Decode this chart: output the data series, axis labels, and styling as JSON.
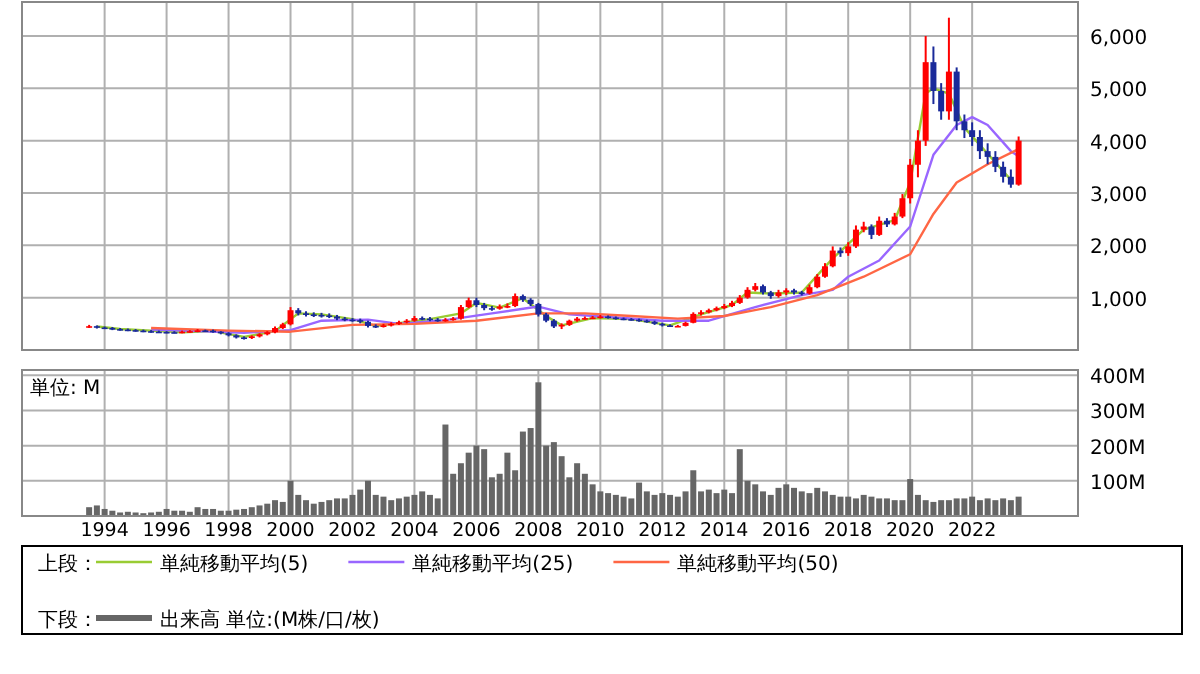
{
  "chart_data": [
    {
      "type": "candlestick",
      "legend_title": "上段：",
      "legend": "bottom",
      "grid": true,
      "tick_labels": "y",
      "xlim": [
        "1991-05",
        "2025-06"
      ],
      "ylim": [
        0,
        6650
      ],
      "xticks": [
        "1994",
        "1996",
        "1998",
        "2000",
        "2002",
        "2004",
        "2006",
        "2008",
        "2010",
        "2012",
        "2014",
        "2016",
        "2018",
        "2020",
        "2022"
      ],
      "yticks": [
        {
          "value": 1000,
          "label": "1,000"
        },
        {
          "value": 2000,
          "label": "2,000"
        },
        {
          "value": 3000,
          "label": "3,000"
        },
        {
          "value": 4000,
          "label": "4,000"
        },
        {
          "value": 5000,
          "label": "5,000"
        },
        {
          "value": 6000,
          "label": "6,000"
        }
      ],
      "x": [
        "1993-07",
        "1993-10",
        "1994-01",
        "1994-04",
        "1994-07",
        "1994-10",
        "1995-01",
        "1995-04",
        "1995-07",
        "1995-10",
        "1996-01",
        "1996-04",
        "1996-07",
        "1996-10",
        "1997-01",
        "1997-04",
        "1997-07",
        "1997-10",
        "1998-01",
        "1998-04",
        "1998-07",
        "1998-10",
        "1999-01",
        "1999-04",
        "1999-07",
        "1999-10",
        "2000-01",
        "2000-04",
        "2000-07",
        "2000-10",
        "2001-01",
        "2001-04",
        "2001-07",
        "2001-10",
        "2002-01",
        "2002-04",
        "2002-07",
        "2002-10",
        "2003-01",
        "2003-04",
        "2003-07",
        "2003-10",
        "2004-01",
        "2004-04",
        "2004-07",
        "2004-10",
        "2005-01",
        "2005-04",
        "2005-07",
        "2005-10",
        "2006-01",
        "2006-04",
        "2006-07",
        "2006-10",
        "2007-01",
        "2007-04",
        "2007-07",
        "2007-10",
        "2008-01",
        "2008-04",
        "2008-07",
        "2008-10",
        "2009-01",
        "2009-04",
        "2009-07",
        "2009-10",
        "2010-01",
        "2010-04",
        "2010-07",
        "2010-10",
        "2011-01",
        "2011-04",
        "2011-07",
        "2011-10",
        "2012-01",
        "2012-04",
        "2012-07",
        "2012-10",
        "2013-01",
        "2013-04",
        "2013-07",
        "2013-10",
        "2014-01",
        "2014-04",
        "2014-07",
        "2014-10",
        "2015-01",
        "2015-04",
        "2015-07",
        "2015-10",
        "2016-01",
        "2016-04",
        "2016-07",
        "2016-10",
        "2017-01",
        "2017-04",
        "2017-07",
        "2017-10",
        "2018-01",
        "2018-04",
        "2018-07",
        "2018-10",
        "2019-01",
        "2019-04",
        "2019-07",
        "2019-10",
        "2020-01",
        "2020-04",
        "2020-07",
        "2020-10",
        "2021-01",
        "2021-04",
        "2021-07",
        "2021-10",
        "2022-01",
        "2022-04",
        "2022-07",
        "2022-10",
        "2023-01",
        "2023-04",
        "2023-07"
      ],
      "ohlc": [
        [
          440,
          480,
          420,
          455
        ],
        [
          455,
          470,
          410,
          430
        ],
        [
          430,
          450,
          400,
          420
        ],
        [
          420,
          440,
          380,
          400
        ],
        [
          400,
          420,
          370,
          390
        ],
        [
          390,
          410,
          360,
          380
        ],
        [
          380,
          400,
          350,
          370
        ],
        [
          370,
          390,
          340,
          360
        ],
        [
          360,
          380,
          330,
          350
        ],
        [
          350,
          370,
          330,
          345
        ],
        [
          345,
          360,
          320,
          340
        ],
        [
          340,
          360,
          320,
          335
        ],
        [
          335,
          370,
          320,
          350
        ],
        [
          350,
          380,
          330,
          360
        ],
        [
          360,
          400,
          340,
          375
        ],
        [
          375,
          390,
          350,
          370
        ],
        [
          370,
          390,
          330,
          350
        ],
        [
          350,
          360,
          300,
          320
        ],
        [
          320,
          340,
          260,
          280
        ],
        [
          280,
          300,
          220,
          240
        ],
        [
          240,
          260,
          200,
          230
        ],
        [
          230,
          280,
          210,
          260
        ],
        [
          260,
          320,
          240,
          300
        ],
        [
          300,
          360,
          280,
          340
        ],
        [
          340,
          450,
          320,
          420
        ],
        [
          420,
          520,
          400,
          490
        ],
        [
          490,
          820,
          470,
          760
        ],
        [
          760,
          800,
          660,
          700
        ],
        [
          700,
          740,
          640,
          680
        ],
        [
          680,
          720,
          630,
          670
        ],
        [
          670,
          710,
          620,
          660
        ],
        [
          660,
          700,
          610,
          640
        ],
        [
          640,
          670,
          570,
          600
        ],
        [
          600,
          630,
          550,
          580
        ],
        [
          580,
          610,
          540,
          570
        ],
        [
          570,
          600,
          510,
          540
        ],
        [
          540,
          560,
          430,
          460
        ],
        [
          460,
          490,
          420,
          450
        ],
        [
          450,
          500,
          430,
          470
        ],
        [
          470,
          530,
          450,
          500
        ],
        [
          500,
          560,
          480,
          530
        ],
        [
          530,
          590,
          510,
          560
        ],
        [
          560,
          650,
          540,
          610
        ],
        [
          610,
          640,
          570,
          600
        ],
        [
          600,
          630,
          550,
          580
        ],
        [
          580,
          610,
          540,
          570
        ],
        [
          570,
          610,
          540,
          580
        ],
        [
          580,
          630,
          560,
          600
        ],
        [
          600,
          860,
          580,
          820
        ],
        [
          820,
          1000,
          800,
          950
        ],
        [
          950,
          1000,
          820,
          860
        ],
        [
          860,
          900,
          760,
          800
        ],
        [
          800,
          840,
          750,
          790
        ],
        [
          790,
          870,
          770,
          830
        ],
        [
          830,
          890,
          800,
          840
        ],
        [
          840,
          1080,
          820,
          1030
        ],
        [
          1030,
          1060,
          920,
          960
        ],
        [
          960,
          990,
          840,
          880
        ],
        [
          880,
          900,
          640,
          680
        ],
        [
          680,
          710,
          530,
          560
        ],
        [
          560,
          590,
          420,
          450
        ],
        [
          450,
          510,
          400,
          480
        ],
        [
          480,
          580,
          460,
          560
        ],
        [
          560,
          630,
          540,
          600
        ],
        [
          600,
          640,
          580,
          610
        ],
        [
          610,
          650,
          590,
          620
        ],
        [
          620,
          670,
          600,
          640
        ],
        [
          640,
          660,
          600,
          620
        ],
        [
          620,
          640,
          580,
          600
        ],
        [
          600,
          620,
          570,
          590
        ],
        [
          590,
          610,
          560,
          580
        ],
        [
          580,
          600,
          540,
          560
        ],
        [
          560,
          580,
          520,
          540
        ],
        [
          540,
          560,
          480,
          500
        ],
        [
          500,
          520,
          450,
          470
        ],
        [
          470,
          490,
          440,
          455
        ],
        [
          455,
          480,
          440,
          460
        ],
        [
          460,
          540,
          450,
          520
        ],
        [
          520,
          720,
          510,
          690
        ],
        [
          690,
          760,
          660,
          720
        ],
        [
          720,
          790,
          700,
          760
        ],
        [
          760,
          830,
          740,
          800
        ],
        [
          800,
          880,
          780,
          840
        ],
        [
          840,
          940,
          820,
          900
        ],
        [
          900,
          1050,
          880,
          1000
        ],
        [
          1000,
          1200,
          980,
          1150
        ],
        [
          1150,
          1280,
          1120,
          1220
        ],
        [
          1220,
          1250,
          1060,
          1100
        ],
        [
          1100,
          1130,
          980,
          1030
        ],
        [
          1030,
          1150,
          1000,
          1100
        ],
        [
          1100,
          1180,
          1050,
          1140
        ],
        [
          1140,
          1170,
          1060,
          1100
        ],
        [
          1100,
          1130,
          1040,
          1080
        ],
        [
          1080,
          1250,
          1060,
          1200
        ],
        [
          1200,
          1450,
          1180,
          1400
        ],
        [
          1400,
          1660,
          1380,
          1600
        ],
        [
          1600,
          1980,
          1580,
          1900
        ],
        [
          1900,
          1960,
          1780,
          1850
        ],
        [
          1850,
          2060,
          1800,
          1980
        ],
        [
          1980,
          2380,
          1950,
          2300
        ],
        [
          2300,
          2450,
          2250,
          2360
        ],
        [
          2360,
          2400,
          2120,
          2200
        ],
        [
          2200,
          2550,
          2180,
          2470
        ],
        [
          2470,
          2520,
          2350,
          2400
        ],
        [
          2400,
          2620,
          2380,
          2550
        ],
        [
          2550,
          2980,
          2520,
          2900
        ],
        [
          2900,
          3650,
          2800,
          3540
        ],
        [
          3540,
          4200,
          3300,
          4000
        ],
        [
          4000,
          6000,
          3900,
          5500
        ],
        [
          5500,
          5800,
          4700,
          4950
        ],
        [
          4950,
          5100,
          4400,
          4560
        ],
        [
          4560,
          6350,
          4400,
          5320
        ],
        [
          5320,
          5400,
          4200,
          4370
        ],
        [
          4370,
          4500,
          4050,
          4200
        ],
        [
          4200,
          4350,
          3900,
          4070
        ],
        [
          4070,
          4200,
          3650,
          3800
        ],
        [
          3800,
          3950,
          3550,
          3690
        ],
        [
          3690,
          3800,
          3400,
          3500
        ],
        [
          3500,
          3600,
          3200,
          3310
        ],
        [
          3310,
          3450,
          3100,
          3160
        ],
        [
          3160,
          4080,
          3140,
          4000
        ]
      ],
      "series": [
        {
          "type": "line",
          "name": "単純移動平均(5)",
          "color": "#99cc33",
          "x": [
            "1993-10",
            "1994-07",
            "1995-07",
            "1996-07",
            "1997-07",
            "1998-07",
            "1999-07",
            "2000-04",
            "2001-01",
            "2002-01",
            "2002-10",
            "2003-10",
            "2004-07",
            "2005-07",
            "2006-01",
            "2006-10",
            "2007-07",
            "2008-04",
            "2008-10",
            "2009-10",
            "2011-01",
            "2012-04",
            "2013-04",
            "2014-04",
            "2014-10",
            "2015-07",
            "2016-07",
            "2017-07",
            "2018-07",
            "2019-07",
            "2020-01",
            "2020-07",
            "2020-10",
            "2021-04",
            "2021-10",
            "2022-07",
            "2023-04"
          ],
          "values": [
            450,
            400,
            370,
            340,
            360,
            250,
            360,
            700,
            680,
            590,
            460,
            530,
            590,
            700,
            900,
            810,
            990,
            650,
            470,
            610,
            590,
            470,
            680,
            860,
            1100,
            1080,
            1100,
            1750,
            2300,
            2480,
            3200,
            4900,
            5000,
            4900,
            4250,
            3750,
            3250
          ]
        },
        {
          "type": "line",
          "name": "単純移動平均(25)",
          "color": "#9966ff",
          "x": [
            "1995-07",
            "1997-01",
            "1998-07",
            "2000-01",
            "2001-01",
            "2002-07",
            "2003-07",
            "2005-01",
            "2006-07",
            "2008-01",
            "2009-01",
            "2010-07",
            "2012-01",
            "2013-07",
            "2015-01",
            "2016-07",
            "2017-07",
            "2018-01",
            "2019-01",
            "2020-01",
            "2020-10",
            "2021-07",
            "2022-01",
            "2022-07",
            "2023-04",
            "2023-07"
          ],
          "values": [
            390,
            360,
            330,
            380,
            560,
            580,
            500,
            570,
            700,
            830,
            680,
            620,
            560,
            560,
            820,
            1050,
            1150,
            1400,
            1710,
            2360,
            3730,
            4300,
            4450,
            4300,
            3800,
            3700
          ]
        },
        {
          "type": "line",
          "name": "単純移動平均(50)",
          "color": "#ff6644",
          "x": [
            "1995-07",
            "1998-01",
            "2000-01",
            "2002-01",
            "2004-01",
            "2006-01",
            "2008-01",
            "2009-07",
            "2011-01",
            "2012-07",
            "2014-01",
            "2015-07",
            "2017-01",
            "2018-07",
            "2020-01",
            "2020-10",
            "2021-07",
            "2022-07",
            "2023-07"
          ],
          "values": [
            420,
            370,
            350,
            480,
            500,
            560,
            700,
            700,
            650,
            600,
            650,
            820,
            1050,
            1400,
            1830,
            2600,
            3200,
            3550,
            3840
          ]
        }
      ]
    },
    {
      "type": "bar",
      "legend_title": "下段：",
      "legend": "bottom",
      "grid": true,
      "ylabel": "単位: M",
      "xlim": [
        "1991-05",
        "2025-06"
      ],
      "ylim": [
        0,
        415
      ],
      "xticks": [
        "1994",
        "1996",
        "1998",
        "2000",
        "2002",
        "2004",
        "2006",
        "2008",
        "2010",
        "2012",
        "2014",
        "2016",
        "2018",
        "2020",
        "2022"
      ],
      "yticks": [
        {
          "value": 100,
          "label": "100M"
        },
        {
          "value": 200,
          "label": "200M"
        },
        {
          "value": 300,
          "label": "300M"
        },
        {
          "value": 400,
          "label": "400M"
        }
      ],
      "x": [
        "1993-07",
        "1993-10",
        "1994-01",
        "1994-04",
        "1994-07",
        "1994-10",
        "1995-01",
        "1995-04",
        "1995-07",
        "1995-10",
        "1996-01",
        "1996-04",
        "1996-07",
        "1996-10",
        "1997-01",
        "1997-04",
        "1997-07",
        "1997-10",
        "1998-01",
        "1998-04",
        "1998-07",
        "1998-10",
        "1999-01",
        "1999-04",
        "1999-07",
        "1999-10",
        "2000-01",
        "2000-04",
        "2000-07",
        "2000-10",
        "2001-01",
        "2001-04",
        "2001-07",
        "2001-10",
        "2002-01",
        "2002-04",
        "2002-07",
        "2002-10",
        "2003-01",
        "2003-04",
        "2003-07",
        "2003-10",
        "2004-01",
        "2004-04",
        "2004-07",
        "2004-10",
        "2005-01",
        "2005-04",
        "2005-07",
        "2005-10",
        "2006-01",
        "2006-04",
        "2006-07",
        "2006-10",
        "2007-01",
        "2007-04",
        "2007-07",
        "2007-10",
        "2008-01",
        "2008-04",
        "2008-07",
        "2008-10",
        "2009-01",
        "2009-04",
        "2009-07",
        "2009-10",
        "2010-01",
        "2010-04",
        "2010-07",
        "2010-10",
        "2011-01",
        "2011-04",
        "2011-07",
        "2011-10",
        "2012-01",
        "2012-04",
        "2012-07",
        "2012-10",
        "2013-01",
        "2013-04",
        "2013-07",
        "2013-10",
        "2014-01",
        "2014-04",
        "2014-07",
        "2014-10",
        "2015-01",
        "2015-04",
        "2015-07",
        "2015-10",
        "2016-01",
        "2016-04",
        "2016-07",
        "2016-10",
        "2017-01",
        "2017-04",
        "2017-07",
        "2017-10",
        "2018-01",
        "2018-04",
        "2018-07",
        "2018-10",
        "2019-01",
        "2019-04",
        "2019-07",
        "2019-10",
        "2020-01",
        "2020-04",
        "2020-07",
        "2020-10",
        "2021-01",
        "2021-04",
        "2021-07",
        "2021-10",
        "2022-01",
        "2022-04",
        "2022-07",
        "2022-10",
        "2023-01",
        "2023-04",
        "2023-07"
      ],
      "series": [
        {
          "name": "出来高 単位:(M株/口/枚)",
          "color": "#666666",
          "values": [
            25,
            30,
            20,
            15,
            10,
            12,
            10,
            8,
            10,
            12,
            20,
            15,
            15,
            12,
            25,
            20,
            20,
            15,
            15,
            18,
            20,
            25,
            30,
            35,
            45,
            40,
            100,
            60,
            45,
            35,
            40,
            45,
            50,
            50,
            60,
            75,
            100,
            60,
            55,
            45,
            50,
            55,
            60,
            70,
            60,
            50,
            260,
            120,
            150,
            180,
            200,
            190,
            110,
            120,
            180,
            130,
            240,
            250,
            380,
            200,
            210,
            170,
            110,
            150,
            120,
            90,
            70,
            65,
            60,
            55,
            50,
            95,
            70,
            60,
            65,
            60,
            55,
            70,
            130,
            70,
            75,
            65,
            75,
            65,
            190,
            100,
            90,
            70,
            60,
            80,
            90,
            80,
            70,
            65,
            80,
            70,
            60,
            55,
            55,
            50,
            60,
            55,
            50,
            50,
            45,
            45,
            105,
            60,
            45,
            40,
            45,
            45,
            50,
            50,
            55,
            45,
            50,
            45,
            50,
            45,
            55
          ]
        }
      ]
    }
  ]
}
